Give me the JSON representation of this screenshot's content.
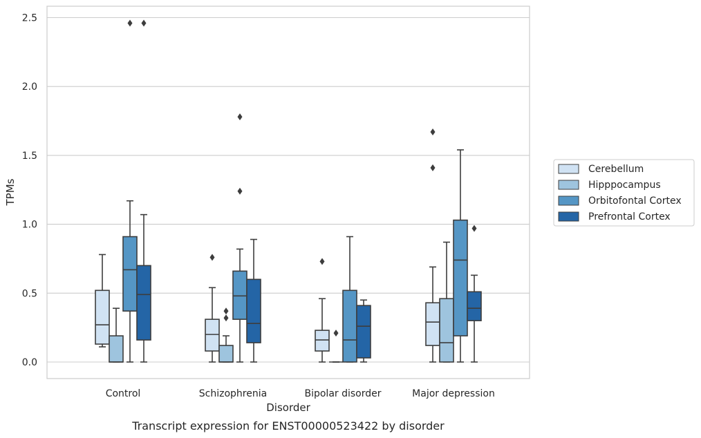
{
  "chart_data": {
    "type": "box",
    "caption": "Transcript expression for ENST00000523422 by disorder",
    "xlabel": "Disorder",
    "ylabel": "TPMs",
    "ylim": [
      -0.12,
      2.59
    ],
    "yticks": [
      0.0,
      0.5,
      1.0,
      1.5,
      2.0,
      2.5
    ],
    "ytick_labels": [
      "0.0",
      "0.5",
      "1.0",
      "1.5",
      "2.0",
      "2.5"
    ],
    "grid": "horizontal",
    "legend_position": "right, outside plot",
    "categories": [
      "Control",
      "Schizophrenia",
      "Bipolar disorder",
      "Major depression"
    ],
    "series": [
      {
        "name": "Cerebellum",
        "color": "#d0e2f3",
        "boxes": [
          {
            "whislo": 0.11,
            "q1": 0.13,
            "med": 0.27,
            "q3": 0.52,
            "whishi": 0.78,
            "fliers": []
          },
          {
            "whislo": 0.0,
            "q1": 0.08,
            "med": 0.2,
            "q3": 0.31,
            "whishi": 0.54,
            "fliers": [
              0.76
            ]
          },
          {
            "whislo": 0.0,
            "q1": 0.08,
            "med": 0.16,
            "q3": 0.23,
            "whishi": 0.46,
            "fliers": [
              0.73
            ]
          },
          {
            "whislo": 0.0,
            "q1": 0.12,
            "med": 0.29,
            "q3": 0.43,
            "whishi": 0.69,
            "fliers": [
              1.41,
              1.67
            ]
          }
        ]
      },
      {
        "name": "Hipppocampus",
        "color": "#9ec4de",
        "boxes": [
          {
            "whislo": 0.0,
            "q1": 0.0,
            "med": 0.0,
            "q3": 0.19,
            "whishi": 0.39,
            "fliers": []
          },
          {
            "whislo": 0.0,
            "q1": 0.0,
            "med": 0.0,
            "q3": 0.12,
            "whishi": 0.19,
            "fliers": [
              0.32,
              0.37
            ]
          },
          {
            "whislo": 0.0,
            "q1": 0.0,
            "med": 0.0,
            "q3": 0.0,
            "whishi": 0.0,
            "fliers": [
              0.21
            ]
          },
          {
            "whislo": 0.0,
            "q1": 0.0,
            "med": 0.14,
            "q3": 0.46,
            "whishi": 0.87,
            "fliers": []
          }
        ]
      },
      {
        "name": "Orbitofontal Cortex",
        "color": "#5596c5",
        "boxes": [
          {
            "whislo": 0.0,
            "q1": 0.37,
            "med": 0.67,
            "q3": 0.91,
            "whishi": 1.17,
            "fliers": [
              2.46
            ]
          },
          {
            "whislo": 0.0,
            "q1": 0.31,
            "med": 0.48,
            "q3": 0.66,
            "whishi": 0.82,
            "fliers": [
              1.24,
              1.78
            ]
          },
          {
            "whislo": 0.0,
            "q1": 0.0,
            "med": 0.16,
            "q3": 0.52,
            "whishi": 0.91,
            "fliers": []
          },
          {
            "whislo": 0.0,
            "q1": 0.19,
            "med": 0.74,
            "q3": 1.03,
            "whishi": 1.54,
            "fliers": []
          }
        ]
      },
      {
        "name": "Prefrontal Cortex",
        "color": "#2465a6",
        "boxes": [
          {
            "whislo": 0.0,
            "q1": 0.16,
            "med": 0.49,
            "q3": 0.7,
            "whishi": 1.07,
            "fliers": [
              2.46
            ]
          },
          {
            "whislo": 0.0,
            "q1": 0.14,
            "med": 0.28,
            "q3": 0.6,
            "whishi": 0.89,
            "fliers": []
          },
          {
            "whislo": 0.0,
            "q1": 0.03,
            "med": 0.26,
            "q3": 0.41,
            "whishi": 0.45,
            "fliers": []
          },
          {
            "whislo": 0.0,
            "q1": 0.3,
            "med": 0.39,
            "q3": 0.51,
            "whishi": 0.63,
            "fliers": [
              0.97
            ]
          }
        ]
      }
    ]
  }
}
